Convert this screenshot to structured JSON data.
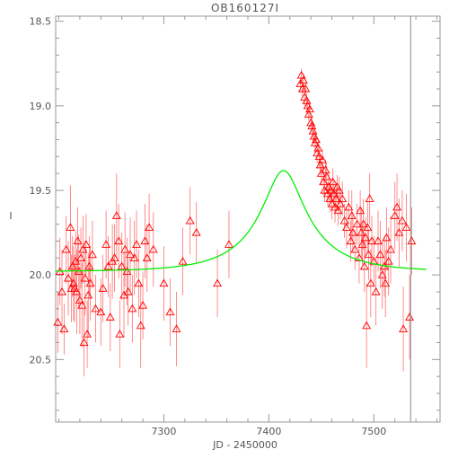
{
  "chart_data": {
    "type": "scatter",
    "title": "OB160127I",
    "xlabel": "JD - 2450000",
    "ylabel": "I",
    "xlim": [
      7197,
      7563
    ],
    "ylim": [
      20.87,
      18.47
    ],
    "y_inverted": true,
    "grid": false,
    "xticks": [
      7300,
      7400,
      7500
    ],
    "xtick_labels": [
      "7300",
      "7400",
      "7500"
    ],
    "yticks": [
      18.5,
      19.0,
      19.5,
      20.0,
      20.5
    ],
    "ytick_labels": [
      "18.5",
      "19.0",
      "19.5",
      "20.0",
      "20.5"
    ],
    "vertical_line_x": 7535,
    "colors": {
      "points": "#ff0000",
      "errorbars": "#ff7070",
      "model": "#00ee00",
      "axes": "#999999",
      "vline": "#888888"
    },
    "model": {
      "name": "",
      "t0": 7414,
      "u0": 0.3,
      "tE": 60,
      "fs": 0.3,
      "base_mag": 19.98
    },
    "series": [
      {
        "name": "",
        "marker": "triangle",
        "points": [
          [
            7199,
            20.28,
            0.18
          ],
          [
            7201,
            19.98,
            0.2
          ],
          [
            7203,
            20.1,
            0.25
          ],
          [
            7205,
            20.32,
            0.15
          ],
          [
            7207,
            19.85,
            0.2
          ],
          [
            7209,
            20.02,
            0.22
          ],
          [
            7211,
            19.72,
            0.25
          ],
          [
            7212,
            20.08,
            0.2
          ],
          [
            7213,
            19.95,
            0.18
          ],
          [
            7214,
            20.05,
            0.22
          ],
          [
            7215,
            20.08,
            0.2
          ],
          [
            7216,
            19.92,
            0.18
          ],
          [
            7217,
            20.1,
            0.25
          ],
          [
            7218,
            19.8,
            0.2
          ],
          [
            7219,
            19.98,
            0.22
          ],
          [
            7220,
            20.15,
            0.2
          ],
          [
            7221,
            19.9,
            0.18
          ],
          [
            7222,
            20.18,
            0.25
          ],
          [
            7223,
            19.85,
            0.2
          ],
          [
            7224,
            20.4,
            0.2
          ],
          [
            7225,
            20.02,
            0.22
          ],
          [
            7226,
            19.82,
            0.18
          ],
          [
            7227,
            20.35,
            0.2
          ],
          [
            7228,
            20.12,
            0.25
          ],
          [
            7229,
            19.95,
            0.18
          ],
          [
            7230,
            20.05,
            0.22
          ],
          [
            7232,
            19.88,
            0.2
          ],
          [
            7235,
            20.2,
            0.2
          ],
          [
            7240,
            20.22,
            0.2
          ],
          [
            7242,
            20.08,
            0.2
          ],
          [
            7245,
            19.82,
            0.2
          ],
          [
            7247,
            19.95,
            0.18
          ],
          [
            7249,
            20.25,
            0.2
          ],
          [
            7251,
            19.92,
            0.22
          ],
          [
            7253,
            19.9,
            0.2
          ],
          [
            7255,
            19.65,
            0.25
          ],
          [
            7257,
            19.8,
            0.22
          ],
          [
            7258,
            20.35,
            0.2
          ],
          [
            7260,
            19.95,
            0.2
          ],
          [
            7262,
            20.12,
            0.25
          ],
          [
            7263,
            19.85,
            0.22
          ],
          [
            7265,
            19.98,
            0.2
          ],
          [
            7266,
            20.1,
            0.2
          ],
          [
            7268,
            19.88,
            0.22
          ],
          [
            7270,
            20.2,
            0.2
          ],
          [
            7272,
            19.9,
            0.22
          ],
          [
            7274,
            19.82,
            0.2
          ],
          [
            7276,
            20.05,
            0.2
          ],
          [
            7278,
            20.3,
            0.25
          ],
          [
            7280,
            20.18,
            0.2
          ],
          [
            7282,
            19.8,
            0.22
          ],
          [
            7284,
            19.9,
            0.2
          ],
          [
            7286,
            19.72,
            0.2
          ],
          [
            7290,
            19.85,
            0.22
          ],
          [
            7300,
            20.05,
            0.22
          ],
          [
            7306,
            20.22,
            0.2
          ],
          [
            7312,
            20.32,
            0.22
          ],
          [
            7318,
            19.92,
            0.2
          ],
          [
            7325,
            19.68,
            0.2
          ],
          [
            7331,
            19.75,
            0.18
          ],
          [
            7351,
            20.05,
            0.2
          ],
          [
            7362,
            19.82,
            0.2
          ],
          [
            7430,
            18.87,
            0.04
          ],
          [
            7431,
            18.82,
            0.04
          ],
          [
            7432,
            18.9,
            0.05
          ],
          [
            7433,
            18.85,
            0.04
          ],
          [
            7434,
            18.95,
            0.05
          ],
          [
            7435,
            18.9,
            0.04
          ],
          [
            7436,
            18.97,
            0.04
          ],
          [
            7437,
            19.0,
            0.05
          ],
          [
            7438,
            19.05,
            0.04
          ],
          [
            7439,
            19.02,
            0.05
          ],
          [
            7440,
            19.1,
            0.04
          ],
          [
            7441,
            19.12,
            0.05
          ],
          [
            7442,
            19.15,
            0.05
          ],
          [
            7443,
            19.18,
            0.04
          ],
          [
            7444,
            19.22,
            0.06
          ],
          [
            7445,
            19.2,
            0.05
          ],
          [
            7446,
            19.28,
            0.06
          ],
          [
            7447,
            19.25,
            0.05
          ],
          [
            7448,
            19.3,
            0.06
          ],
          [
            7449,
            19.35,
            0.06
          ],
          [
            7450,
            19.4,
            0.07
          ],
          [
            7451,
            19.32,
            0.06
          ],
          [
            7452,
            19.45,
            0.08
          ],
          [
            7453,
            19.5,
            0.07
          ],
          [
            7454,
            19.38,
            0.06
          ],
          [
            7455,
            19.42,
            0.08
          ],
          [
            7456,
            19.52,
            0.07
          ],
          [
            7457,
            19.48,
            0.08
          ],
          [
            7458,
            19.55,
            0.08
          ],
          [
            7459,
            19.5,
            0.07
          ],
          [
            7460,
            19.58,
            0.09
          ],
          [
            7461,
            19.45,
            0.08
          ],
          [
            7462,
            19.52,
            0.08
          ],
          [
            7463,
            19.6,
            0.09
          ],
          [
            7464,
            19.55,
            0.08
          ],
          [
            7465,
            19.48,
            0.07
          ],
          [
            7466,
            19.62,
            0.09
          ],
          [
            7467,
            19.5,
            0.08
          ],
          [
            7468,
            19.58,
            0.09
          ],
          [
            7470,
            19.55,
            0.1
          ],
          [
            7472,
            19.68,
            0.1
          ],
          [
            7474,
            19.72,
            0.12
          ],
          [
            7476,
            19.6,
            0.1
          ],
          [
            7478,
            19.8,
            0.12
          ],
          [
            7479,
            19.65,
            0.15
          ],
          [
            7480,
            19.75,
            0.12
          ],
          [
            7482,
            19.85,
            0.12
          ],
          [
            7484,
            19.7,
            0.12
          ],
          [
            7486,
            19.9,
            0.15
          ],
          [
            7487,
            19.62,
            0.12
          ],
          [
            7488,
            19.75,
            0.15
          ],
          [
            7489,
            19.82,
            0.12
          ],
          [
            7490,
            19.7,
            0.15
          ],
          [
            7491,
            19.95,
            0.15
          ],
          [
            7492,
            19.78,
            0.12
          ],
          [
            7493,
            20.3,
            0.25
          ],
          [
            7494,
            19.72,
            0.15
          ],
          [
            7495,
            19.88,
            0.15
          ],
          [
            7496,
            19.55,
            0.15
          ],
          [
            7497,
            20.05,
            0.2
          ],
          [
            7498,
            19.8,
            0.15
          ],
          [
            7500,
            19.92,
            0.15
          ],
          [
            7502,
            20.1,
            0.2
          ],
          [
            7504,
            19.8,
            0.18
          ],
          [
            7506,
            19.88,
            0.2
          ],
          [
            7508,
            20.0,
            0.2
          ],
          [
            7510,
            19.95,
            0.18
          ],
          [
            7511,
            20.05,
            0.2
          ],
          [
            7512,
            19.78,
            0.18
          ],
          [
            7514,
            19.92,
            0.2
          ],
          [
            7516,
            19.85,
            0.2
          ],
          [
            7520,
            19.65,
            0.2
          ],
          [
            7522,
            19.6,
            0.2
          ],
          [
            7524,
            19.75,
            0.2
          ],
          [
            7527,
            19.68,
            0.18
          ],
          [
            7528,
            20.32,
            0.25
          ],
          [
            7531,
            19.72,
            0.2
          ],
          [
            7534,
            20.25,
            0.25
          ],
          [
            7536,
            19.8,
            0.2
          ]
        ]
      }
    ]
  }
}
